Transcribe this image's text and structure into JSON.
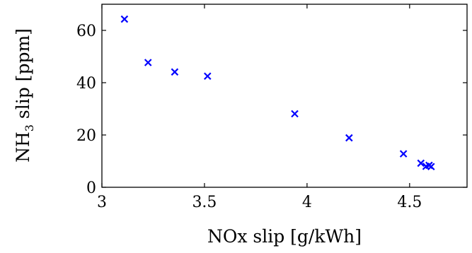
{
  "chart_data": {
    "type": "scatter",
    "xlabel": "NOx slip [g/kWh]",
    "ylabel": {
      "main": "NH",
      "sub": "3",
      "rest": " slip [ppm]"
    },
    "xlim": [
      3.0,
      4.78
    ],
    "ylim": [
      0,
      70
    ],
    "xticks": [
      3,
      3.5,
      4,
      4.5
    ],
    "xtick_labels": [
      "3",
      "3.5",
      "4",
      "4.5"
    ],
    "yticks": [
      0,
      20,
      40,
      60
    ],
    "ytick_labels": [
      "0",
      "20",
      "40",
      "60"
    ],
    "grid": false,
    "marker": "x",
    "marker_color": "#0000ff",
    "series": [
      {
        "x": [
          3.11,
          3.225,
          3.355,
          3.515,
          3.94,
          4.205,
          4.47,
          4.555,
          4.58,
          4.595,
          4.605
        ],
        "y": [
          64.3,
          47.7,
          44.1,
          42.5,
          28.1,
          18.9,
          12.8,
          9.2,
          8.0,
          8.4,
          7.9
        ]
      }
    ]
  }
}
